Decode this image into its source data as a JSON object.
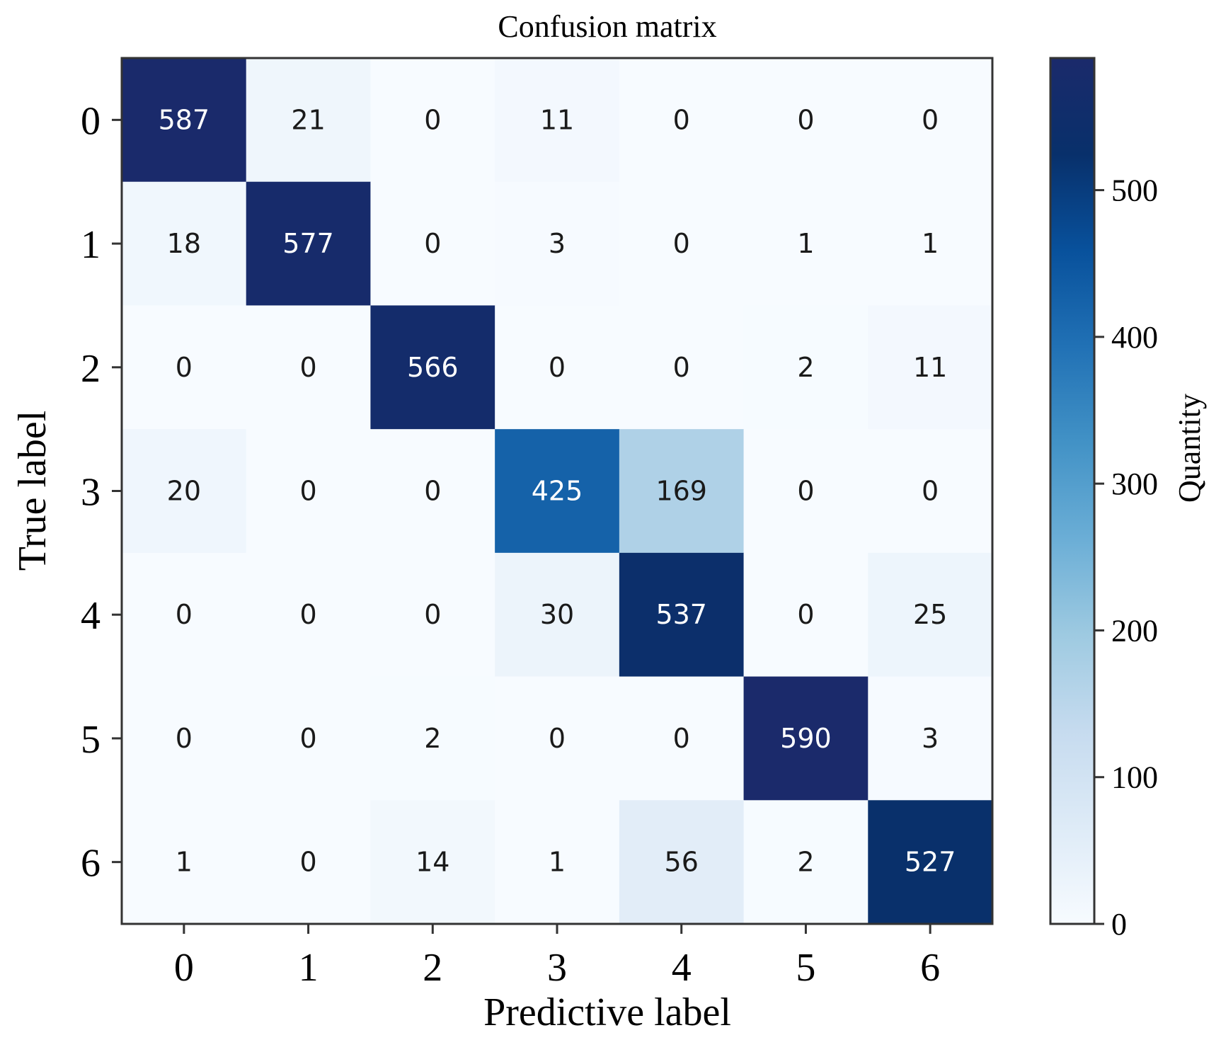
{
  "chart_data": {
    "type": "heatmap",
    "title": "Confusion matrix",
    "xlabel": "Predictive label",
    "ylabel": "True label",
    "x_categories": [
      "0",
      "1",
      "2",
      "3",
      "4",
      "5",
      "6"
    ],
    "y_categories": [
      "0",
      "1",
      "2",
      "3",
      "4",
      "5",
      "6"
    ],
    "values": [
      [
        587,
        21,
        0,
        11,
        0,
        0,
        0
      ],
      [
        18,
        577,
        0,
        3,
        0,
        1,
        1
      ],
      [
        0,
        0,
        566,
        0,
        0,
        2,
        11
      ],
      [
        20,
        0,
        0,
        425,
        169,
        0,
        0
      ],
      [
        0,
        0,
        0,
        30,
        537,
        0,
        25
      ],
      [
        0,
        0,
        2,
        0,
        0,
        590,
        3
      ],
      [
        1,
        0,
        14,
        1,
        56,
        2,
        527
      ]
    ],
    "colorbar": {
      "label": "Quantity",
      "range": [
        0,
        590
      ],
      "ticks": [
        0,
        100,
        200,
        300,
        400,
        500
      ],
      "colormap": "Blues",
      "colors": [
        "#f7fbff",
        "#deebf7",
        "#c6dbef",
        "#9ecae1",
        "#6baed6",
        "#4292c6",
        "#2171b5",
        "#08519c",
        "#08306b",
        "#1b2a6b"
      ]
    },
    "grid": false
  }
}
